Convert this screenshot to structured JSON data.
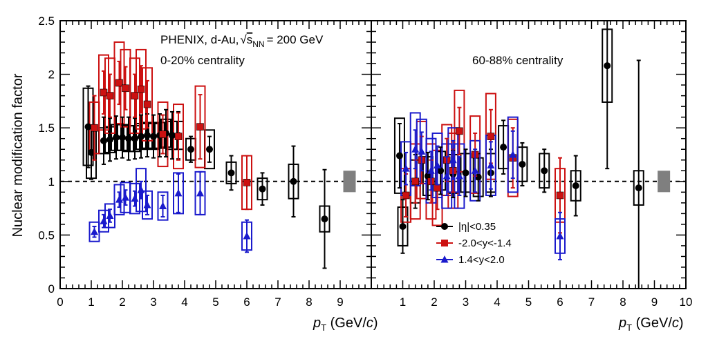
{
  "chart_data": [
    {
      "type": "scatter",
      "panel": "left",
      "annotation_lines": [
        "PHENIX, d-Au, √s_NN = 200 GeV",
        "0-20% centrality"
      ],
      "xlim": [
        0,
        10
      ],
      "ylim": [
        0,
        2.5
      ],
      "xticks": [
        "0",
        "1",
        "2",
        "3",
        "4",
        "5",
        "6",
        "7",
        "8",
        "9"
      ],
      "yticks": [
        "0",
        "0.5",
        "1",
        "1.5",
        "2",
        "2.5"
      ],
      "reference_line": 1,
      "global_uncertainty_box": {
        "x": 9.3,
        "y": 1.0,
        "half_height": 0.1
      },
      "series": [
        {
          "name": "|η|<0.35",
          "color": "#000000",
          "marker": "circle",
          "points": [
            {
              "x": 0.9,
              "y": 1.51,
              "err": 0.38,
              "sys": 0.36
            },
            {
              "x": 1.0,
              "y": 1.27,
              "err": 0.25,
              "sys": 0.24
            },
            {
              "x": 1.4,
              "y": 1.38,
              "err": 0.22,
              "sys": 0.12
            },
            {
              "x": 1.6,
              "y": 1.39,
              "err": 0.2,
              "sys": 0.12
            },
            {
              "x": 1.8,
              "y": 1.41,
              "err": 0.2,
              "sys": 0.12
            },
            {
              "x": 2.0,
              "y": 1.41,
              "err": 0.19,
              "sys": 0.12
            },
            {
              "x": 2.2,
              "y": 1.4,
              "err": 0.2,
              "sys": 0.12
            },
            {
              "x": 2.4,
              "y": 1.4,
              "err": 0.19,
              "sys": 0.12
            },
            {
              "x": 2.6,
              "y": 1.42,
              "err": 0.2,
              "sys": 0.12
            },
            {
              "x": 2.8,
              "y": 1.43,
              "err": 0.2,
              "sys": 0.12
            },
            {
              "x": 3.0,
              "y": 1.42,
              "err": 0.2,
              "sys": 0.12
            },
            {
              "x": 3.2,
              "y": 1.43,
              "err": 0.2,
              "sys": 0.12
            },
            {
              "x": 3.4,
              "y": 1.45,
              "err": 0.22,
              "sys": 0.13
            },
            {
              "x": 3.6,
              "y": 1.43,
              "err": 0.22,
              "sys": 0.13
            },
            {
              "x": 3.8,
              "y": 1.43,
              "err": 0.22,
              "sys": 0.13
            },
            {
              "x": 4.2,
              "y": 1.3,
              "err": 0.12,
              "sys": 0.1
            },
            {
              "x": 4.8,
              "y": 1.3,
              "err": 0.12,
              "sys": 0.18
            },
            {
              "x": 5.5,
              "y": 1.08,
              "err": 0.16,
              "sys": 0.1
            },
            {
              "x": 6.5,
              "y": 0.93,
              "err": 0.15,
              "sys": 0.1
            },
            {
              "x": 7.5,
              "y": 1.0,
              "err": 0.33,
              "sys": 0.16
            },
            {
              "x": 8.5,
              "y": 0.65,
              "err": 0.46,
              "sys": 0.12
            }
          ]
        },
        {
          "name": "-2.0<y<-1.4",
          "color": "#cc1111",
          "marker": "square",
          "points": [
            {
              "x": 1.1,
              "y": 1.5,
              "err": 0.3,
              "sys": 0.24
            },
            {
              "x": 1.4,
              "y": 1.83,
              "err": 0.2,
              "sys": 0.35
            },
            {
              "x": 1.6,
              "y": 1.8,
              "err": 0.2,
              "sys": 0.35
            },
            {
              "x": 1.9,
              "y": 1.92,
              "err": 0.2,
              "sys": 0.38
            },
            {
              "x": 2.1,
              "y": 1.87,
              "err": 0.2,
              "sys": 0.36
            },
            {
              "x": 2.4,
              "y": 1.8,
              "err": 0.2,
              "sys": 0.35
            },
            {
              "x": 2.6,
              "y": 1.86,
              "err": 0.22,
              "sys": 0.37
            },
            {
              "x": 2.8,
              "y": 1.72,
              "err": 0.22,
              "sys": 0.34
            },
            {
              "x": 3.3,
              "y": 1.44,
              "err": 0.18,
              "sys": 0.3
            },
            {
              "x": 3.8,
              "y": 1.42,
              "err": 0.22,
              "sys": 0.3
            },
            {
              "x": 4.5,
              "y": 1.51,
              "err": 0.3,
              "sys": 0.38
            },
            {
              "x": 6.0,
              "y": 0.99,
              "err": 0.25,
              "sys": 0.25
            }
          ]
        },
        {
          "name": "1.4<y<2.0",
          "color": "#1a1acc",
          "marker": "triangle",
          "points": [
            {
              "x": 1.1,
              "y": 0.53,
              "err": 0.05,
              "sys": 0.09
            },
            {
              "x": 1.4,
              "y": 0.63,
              "err": 0.06,
              "sys": 0.1
            },
            {
              "x": 1.6,
              "y": 0.68,
              "err": 0.06,
              "sys": 0.11
            },
            {
              "x": 1.9,
              "y": 0.83,
              "err": 0.07,
              "sys": 0.14
            },
            {
              "x": 2.1,
              "y": 0.85,
              "err": 0.07,
              "sys": 0.14
            },
            {
              "x": 2.4,
              "y": 0.84,
              "err": 0.07,
              "sys": 0.14
            },
            {
              "x": 2.6,
              "y": 0.92,
              "err": 0.08,
              "sys": 0.2
            },
            {
              "x": 2.8,
              "y": 0.78,
              "err": 0.09,
              "sys": 0.13
            },
            {
              "x": 3.3,
              "y": 0.77,
              "err": 0.1,
              "sys": 0.13
            },
            {
              "x": 3.8,
              "y": 0.89,
              "err": 0.18,
              "sys": 0.19
            },
            {
              "x": 4.5,
              "y": 0.89,
              "err": 0.2,
              "sys": 0.2
            },
            {
              "x": 6.0,
              "y": 0.49,
              "err": 0.15,
              "sys": 0.13
            }
          ]
        }
      ]
    },
    {
      "type": "scatter",
      "panel": "right",
      "annotation_lines": [
        "60-88% centrality"
      ],
      "xlim": [
        0,
        10
      ],
      "ylim": [
        0,
        2.5
      ],
      "xticks": [
        "1",
        "2",
        "3",
        "4",
        "5",
        "6",
        "7",
        "8",
        "9",
        "10"
      ],
      "reference_line": 1,
      "global_uncertainty_box": {
        "x": 9.3,
        "y": 1.0,
        "half_height": 0.1
      },
      "legend_position": "bottom-center",
      "series": [
        {
          "name": "|η|<0.35",
          "color": "#000000",
          "marker": "circle",
          "points": [
            {
              "x": 0.9,
              "y": 1.24,
              "err": 0.3,
              "sys": 0.35
            },
            {
              "x": 1.0,
              "y": 0.58,
              "err": 0.25,
              "sys": 0.18
            },
            {
              "x": 1.4,
              "y": 1.0,
              "err": 0.25,
              "sys": 0.2
            },
            {
              "x": 1.8,
              "y": 1.05,
              "err": 0.22,
              "sys": 0.18
            },
            {
              "x": 2.2,
              "y": 1.1,
              "err": 0.22,
              "sys": 0.18
            },
            {
              "x": 2.6,
              "y": 1.07,
              "err": 0.22,
              "sys": 0.18
            },
            {
              "x": 3.0,
              "y": 1.08,
              "err": 0.22,
              "sys": 0.18
            },
            {
              "x": 3.4,
              "y": 1.04,
              "err": 0.22,
              "sys": 0.18
            },
            {
              "x": 3.8,
              "y": 1.08,
              "err": 0.22,
              "sys": 0.18
            },
            {
              "x": 4.2,
              "y": 1.32,
              "err": 0.25,
              "sys": 0.2
            },
            {
              "x": 4.8,
              "y": 1.16,
              "err": 0.2,
              "sys": 0.16
            },
            {
              "x": 5.5,
              "y": 1.1,
              "err": 0.2,
              "sys": 0.16
            },
            {
              "x": 6.5,
              "y": 0.96,
              "err": 0.28,
              "sys": 0.14
            },
            {
              "x": 7.5,
              "y": 2.08,
              "err": 0.96,
              "sys": 0.34
            },
            {
              "x": 8.5,
              "y": 0.94,
              "err": 1.19,
              "sys": 0.16
            }
          ]
        },
        {
          "name": "-2.0<y<-1.4",
          "color": "#cc1111",
          "marker": "square",
          "points": [
            {
              "x": 1.1,
              "y": 0.87,
              "err": 0.2,
              "sys": 0.25
            },
            {
              "x": 1.4,
              "y": 1.0,
              "err": 0.2,
              "sys": 0.35
            },
            {
              "x": 1.6,
              "y": 1.2,
              "err": 0.22,
              "sys": 0.36
            },
            {
              "x": 1.9,
              "y": 1.0,
              "err": 0.2,
              "sys": 0.35
            },
            {
              "x": 2.1,
              "y": 0.94,
              "err": 0.2,
              "sys": 0.35
            },
            {
              "x": 2.4,
              "y": 1.2,
              "err": 0.2,
              "sys": 0.33
            },
            {
              "x": 2.6,
              "y": 1.1,
              "err": 0.2,
              "sys": 0.35
            },
            {
              "x": 2.8,
              "y": 1.47,
              "err": 0.22,
              "sys": 0.38
            },
            {
              "x": 3.3,
              "y": 1.25,
              "err": 0.2,
              "sys": 0.36
            },
            {
              "x": 3.8,
              "y": 1.42,
              "err": 0.25,
              "sys": 0.4
            },
            {
              "x": 4.5,
              "y": 1.22,
              "err": 0.28,
              "sys": 0.36
            },
            {
              "x": 6.0,
              "y": 0.87,
              "err": 0.35,
              "sys": 0.25
            }
          ]
        },
        {
          "name": "1.4<y<2.0",
          "color": "#1a1acc",
          "marker": "triangle",
          "points": [
            {
              "x": 1.1,
              "y": 1.12,
              "err": 0.15,
              "sys": 0.25
            },
            {
              "x": 1.4,
              "y": 1.3,
              "err": 0.18,
              "sys": 0.34
            },
            {
              "x": 1.6,
              "y": 1.28,
              "err": 0.18,
              "sys": 0.3
            },
            {
              "x": 1.9,
              "y": 1.1,
              "err": 0.18,
              "sys": 0.3
            },
            {
              "x": 2.1,
              "y": 1.15,
              "err": 0.18,
              "sys": 0.3
            },
            {
              "x": 2.4,
              "y": 1.05,
              "err": 0.18,
              "sys": 0.3
            },
            {
              "x": 2.6,
              "y": 1.2,
              "err": 0.18,
              "sys": 0.3
            },
            {
              "x": 2.8,
              "y": 1.05,
              "err": 0.18,
              "sys": 0.3
            },
            {
              "x": 3.3,
              "y": 1.1,
              "err": 0.2,
              "sys": 0.28
            },
            {
              "x": 3.8,
              "y": 1.15,
              "err": 0.22,
              "sys": 0.28
            },
            {
              "x": 4.5,
              "y": 1.25,
              "err": 0.22,
              "sys": 0.35
            },
            {
              "x": 6.0,
              "y": 0.49,
              "err": 0.22,
              "sys": 0.16
            }
          ]
        }
      ]
    }
  ],
  "labels": {
    "ylabel": "Nuclear modification factor",
    "xlabel_main": "p",
    "xlabel_sub": "T",
    "xlabel_unit": " (GeV/",
    "xlabel_c": "c",
    "xlabel_close": ")",
    "header_prefix": "PHENIX, d-Au,",
    "header_s": "s",
    "header_sub": "NN",
    "header_value": "= 200 GeV",
    "left_centrality": "0-20% centrality",
    "right_centrality": "60-88% centrality",
    "legend": [
      "|η|<0.35",
      "-2.0<y<-1.4",
      "1.4<y<2.0"
    ]
  },
  "colors": {
    "black": "#000000",
    "red": "#cc1111",
    "blue": "#1a1acc",
    "global_box": "#7f7f7f"
  }
}
